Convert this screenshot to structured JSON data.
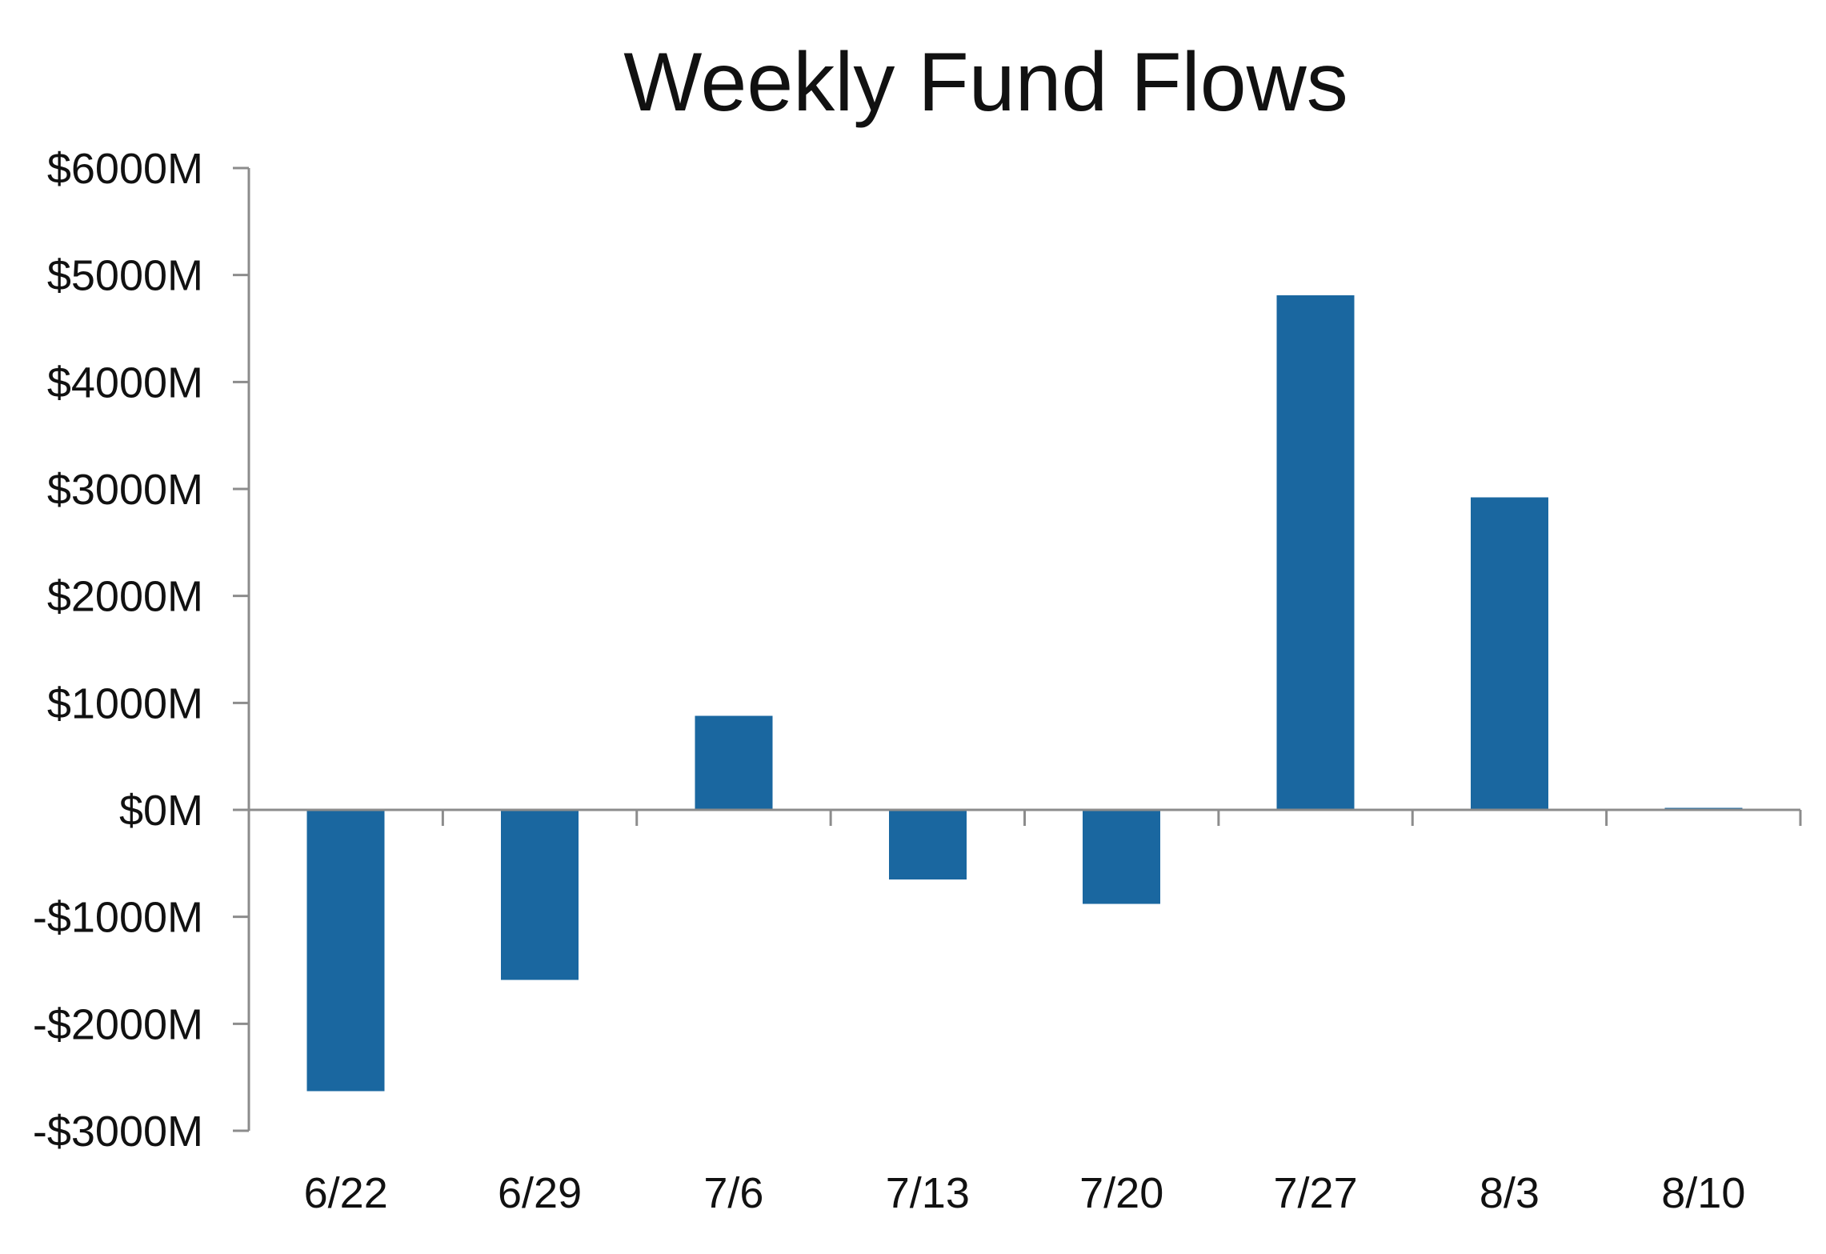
{
  "chart_data": {
    "type": "bar",
    "title": "Weekly Fund Flows",
    "xlabel": "",
    "ylabel": "",
    "categories": [
      "6/22",
      "6/29",
      "7/6",
      "7/13",
      "7/20",
      "7/27",
      "8/3",
      "8/10"
    ],
    "series": [
      {
        "values": [
          -2630,
          -1590,
          880,
          -650,
          -880,
          4810,
          2920,
          20
        ],
        "color": "#1a67a0"
      }
    ],
    "ylim": [
      -3000,
      6000
    ],
    "yticks": [
      6000,
      5000,
      4000,
      3000,
      2000,
      1000,
      0,
      -1000,
      -2000,
      -3000
    ],
    "ytick_labels": [
      "$6000M",
      "$5000M",
      "$4000M",
      "$3000M",
      "$2000M",
      "$1000M",
      "$0M",
      "-$1000M",
      "-$2000M",
      "-$3000M"
    ],
    "grid": false,
    "legend": "none"
  }
}
